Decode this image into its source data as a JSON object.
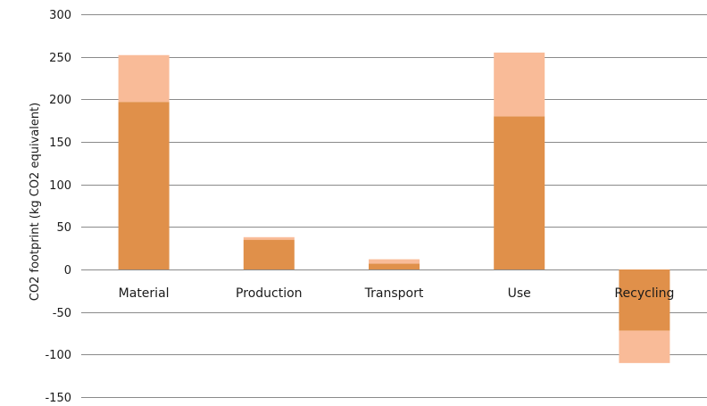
{
  "chart_data": {
    "type": "bar",
    "stacked": true,
    "categories": [
      "Material",
      "Production",
      "Transport",
      "Use",
      "Recycling"
    ],
    "series": [
      {
        "values": [
          197,
          35,
          7,
          180,
          -72
        ],
        "color": "#e0904a"
      },
      {
        "values": [
          55,
          3,
          5,
          75,
          -38
        ],
        "color": "#f9bb98"
      }
    ],
    "ylabel": "CO2 footprint (kg CO2 equivalent)",
    "ylim": [
      -150,
      300
    ],
    "yticks": [
      300,
      250,
      200,
      150,
      100,
      50,
      0,
      -50,
      -100,
      -150
    ],
    "grid": true
  }
}
